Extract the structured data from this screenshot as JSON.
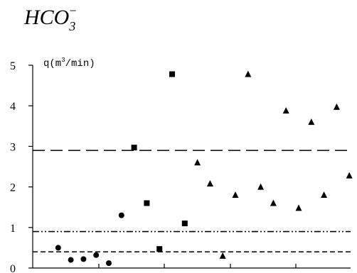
{
  "chart_data": {
    "type": "scatter",
    "title": {
      "base": "HCO",
      "sub": "3",
      "sup": "−"
    },
    "ylabel": {
      "text": "q(m",
      "sup": "3",
      "tail": "/min)"
    },
    "ylim": [
      0,
      5
    ],
    "yticks": [
      "0",
      "1",
      "2",
      "3",
      "4",
      "5"
    ],
    "xlim": [
      0,
      24
    ],
    "series": [
      {
        "marker": "circle",
        "points": [
          {
            "x": 1,
            "y": 0.5
          },
          {
            "x": 2,
            "y": 0.2
          },
          {
            "x": 3,
            "y": 0.22
          },
          {
            "x": 4,
            "y": 0.32
          },
          {
            "x": 5,
            "y": 0.12
          },
          {
            "x": 6,
            "y": 1.3
          }
        ]
      },
      {
        "marker": "square",
        "points": [
          {
            "x": 7,
            "y": 2.97
          },
          {
            "x": 8,
            "y": 1.6
          },
          {
            "x": 9,
            "y": 0.47
          },
          {
            "x": 10,
            "y": 4.78
          },
          {
            "x": 11,
            "y": 1.1
          }
        ]
      },
      {
        "marker": "triangle",
        "points": [
          {
            "x": 12,
            "y": 2.6
          },
          {
            "x": 13,
            "y": 2.08
          },
          {
            "x": 14,
            "y": 0.3
          },
          {
            "x": 15,
            "y": 1.8
          },
          {
            "x": 16,
            "y": 4.78
          },
          {
            "x": 17,
            "y": 2.0
          },
          {
            "x": 18,
            "y": 1.6
          },
          {
            "x": 19,
            "y": 3.88
          },
          {
            "x": 20,
            "y": 1.48
          },
          {
            "x": 21,
            "y": 3.6
          },
          {
            "x": 22,
            "y": 1.8
          },
          {
            "x": 23,
            "y": 3.97
          },
          {
            "x": 24,
            "y": 2.28
          }
        ]
      }
    ],
    "reference_lines": [
      {
        "y": 2.9,
        "style": "long-dash"
      },
      {
        "y": 0.9,
        "style": "dash-dot-dot"
      },
      {
        "y": 0.4,
        "style": "short-dash"
      }
    ],
    "grid": false,
    "legend": "none",
    "colors": {
      "ink": "#000000",
      "background": "#ffffff"
    }
  }
}
